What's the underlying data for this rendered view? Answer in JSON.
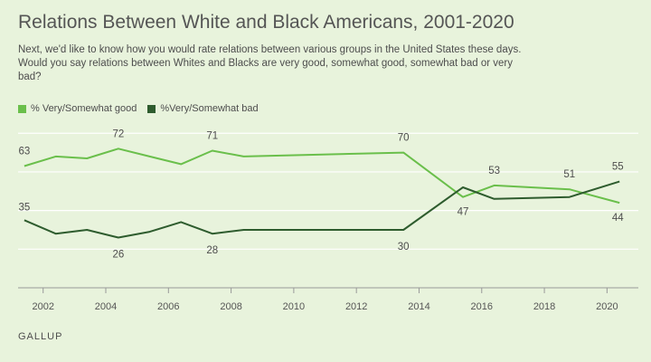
{
  "header": {
    "title": "Relations Between White and Black Americans, 2001-2020",
    "subtitle": "Next, we'd like to know how you would rate relations between various groups in the United States these days. Would you say relations between Whites and Blacks are very good, somewhat good, somewhat bad or very bad?"
  },
  "footer": {
    "brand": "GALLUP"
  },
  "colors": {
    "good": "#6abf4b",
    "bad": "#2e5c2e",
    "grid": "#ffffff",
    "axis": "#999999"
  },
  "chart_data": {
    "type": "line",
    "title": "Relations Between White and Black Americans, 2001-2020",
    "xlabel": "",
    "ylabel": "",
    "xlim": [
      2001.2,
      2021
    ],
    "ylim": [
      0,
      82
    ],
    "grid": true,
    "legend_position": "top-left",
    "x_ticks": [
      "2002",
      "2004",
      "2006",
      "2008",
      "2010",
      "2012",
      "2014",
      "2016",
      "2018",
      "2020"
    ],
    "series": [
      {
        "name": "% Very/Somewhat good",
        "color": "#6abf4b",
        "points": [
          {
            "x": 2001.4,
            "y": 63,
            "label": "63"
          },
          {
            "x": 2002.4,
            "y": 68
          },
          {
            "x": 2003.4,
            "y": 67
          },
          {
            "x": 2004.4,
            "y": 72,
            "label": "72"
          },
          {
            "x": 2005.4,
            "y": 68
          },
          {
            "x": 2006.4,
            "y": 64
          },
          {
            "x": 2007.4,
            "y": 71,
            "label": "71"
          },
          {
            "x": 2008.4,
            "y": 68
          },
          {
            "x": 2013.5,
            "y": 70,
            "label": "70"
          },
          {
            "x": 2015.4,
            "y": 47,
            "label": "47"
          },
          {
            "x": 2016.4,
            "y": 53,
            "label": "53"
          },
          {
            "x": 2018.8,
            "y": 51,
            "label": "51"
          },
          {
            "x": 2020.4,
            "y": 44,
            "label": "44"
          }
        ]
      },
      {
        "name": "%Very/Somewhat bad",
        "color": "#2e5c2e",
        "points": [
          {
            "x": 2001.4,
            "y": 35,
            "label": "35"
          },
          {
            "x": 2002.4,
            "y": 28
          },
          {
            "x": 2003.4,
            "y": 30
          },
          {
            "x": 2004.4,
            "y": 26,
            "label": "26"
          },
          {
            "x": 2005.4,
            "y": 29
          },
          {
            "x": 2006.4,
            "y": 34
          },
          {
            "x": 2007.4,
            "y": 28,
            "label": "28"
          },
          {
            "x": 2008.4,
            "y": 30
          },
          {
            "x": 2013.5,
            "y": 30,
            "label": "30"
          },
          {
            "x": 2015.4,
            "y": 52
          },
          {
            "x": 2016.4,
            "y": 46
          },
          {
            "x": 2018.8,
            "y": 47
          },
          {
            "x": 2020.4,
            "y": 55,
            "label": "55"
          }
        ]
      }
    ]
  }
}
